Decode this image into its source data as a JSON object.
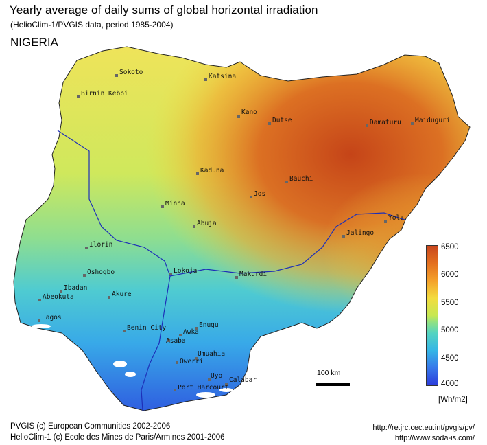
{
  "header": {
    "title": "Yearly average of daily sums of global horizontal irradiation",
    "subtitle": "(HelioClim-1/PVGIS data, period 1985-2004)",
    "country": "NIGERIA"
  },
  "cities": [
    {
      "name": "Sokoto"
    },
    {
      "name": "Katsina"
    },
    {
      "name": "Birnin Kebbi"
    },
    {
      "name": "Kano"
    },
    {
      "name": "Dutse"
    },
    {
      "name": "Damaturu"
    },
    {
      "name": "Maiduguri"
    },
    {
      "name": "Kaduna"
    },
    {
      "name": "Bauchi"
    },
    {
      "name": "Jos"
    },
    {
      "name": "Minna"
    },
    {
      "name": "Abuja"
    },
    {
      "name": "Yola"
    },
    {
      "name": "Jalingo"
    },
    {
      "name": "Ilorin"
    },
    {
      "name": "Oshogbo"
    },
    {
      "name": "Lokoja"
    },
    {
      "name": "Makurdi"
    },
    {
      "name": "Ibadan"
    },
    {
      "name": "Abeokuta"
    },
    {
      "name": "Akure"
    },
    {
      "name": "Lagos"
    },
    {
      "name": "Benin City"
    },
    {
      "name": "Enugu"
    },
    {
      "name": "Awka"
    },
    {
      "name": "Asaba"
    },
    {
      "name": "Umuahia"
    },
    {
      "name": "Owerri"
    },
    {
      "name": "Uyo"
    },
    {
      "name": "Calabar"
    },
    {
      "name": "Port Harcourt"
    }
  ],
  "scale_bar": {
    "label": "100 km"
  },
  "legend": {
    "ticks": [
      "6500",
      "6000",
      "5500",
      "5000",
      "4500",
      "4000"
    ],
    "unit": "[Wh/m2]",
    "colors": {
      "high": "#c8461d",
      "mid": "#f3dc3e",
      "low": "#2b3cdb"
    }
  },
  "footer": {
    "left_line1": "PVGIS (c) European Communities 2002-2006",
    "left_line2": "HelioClim-1 (c) Ecole des Mines de Paris/Armines 2001-2006",
    "right_line1": "http://re.jrc.cec.eu.int/pvgis/pv/",
    "right_line2": "http://www.soda-is.com/"
  }
}
